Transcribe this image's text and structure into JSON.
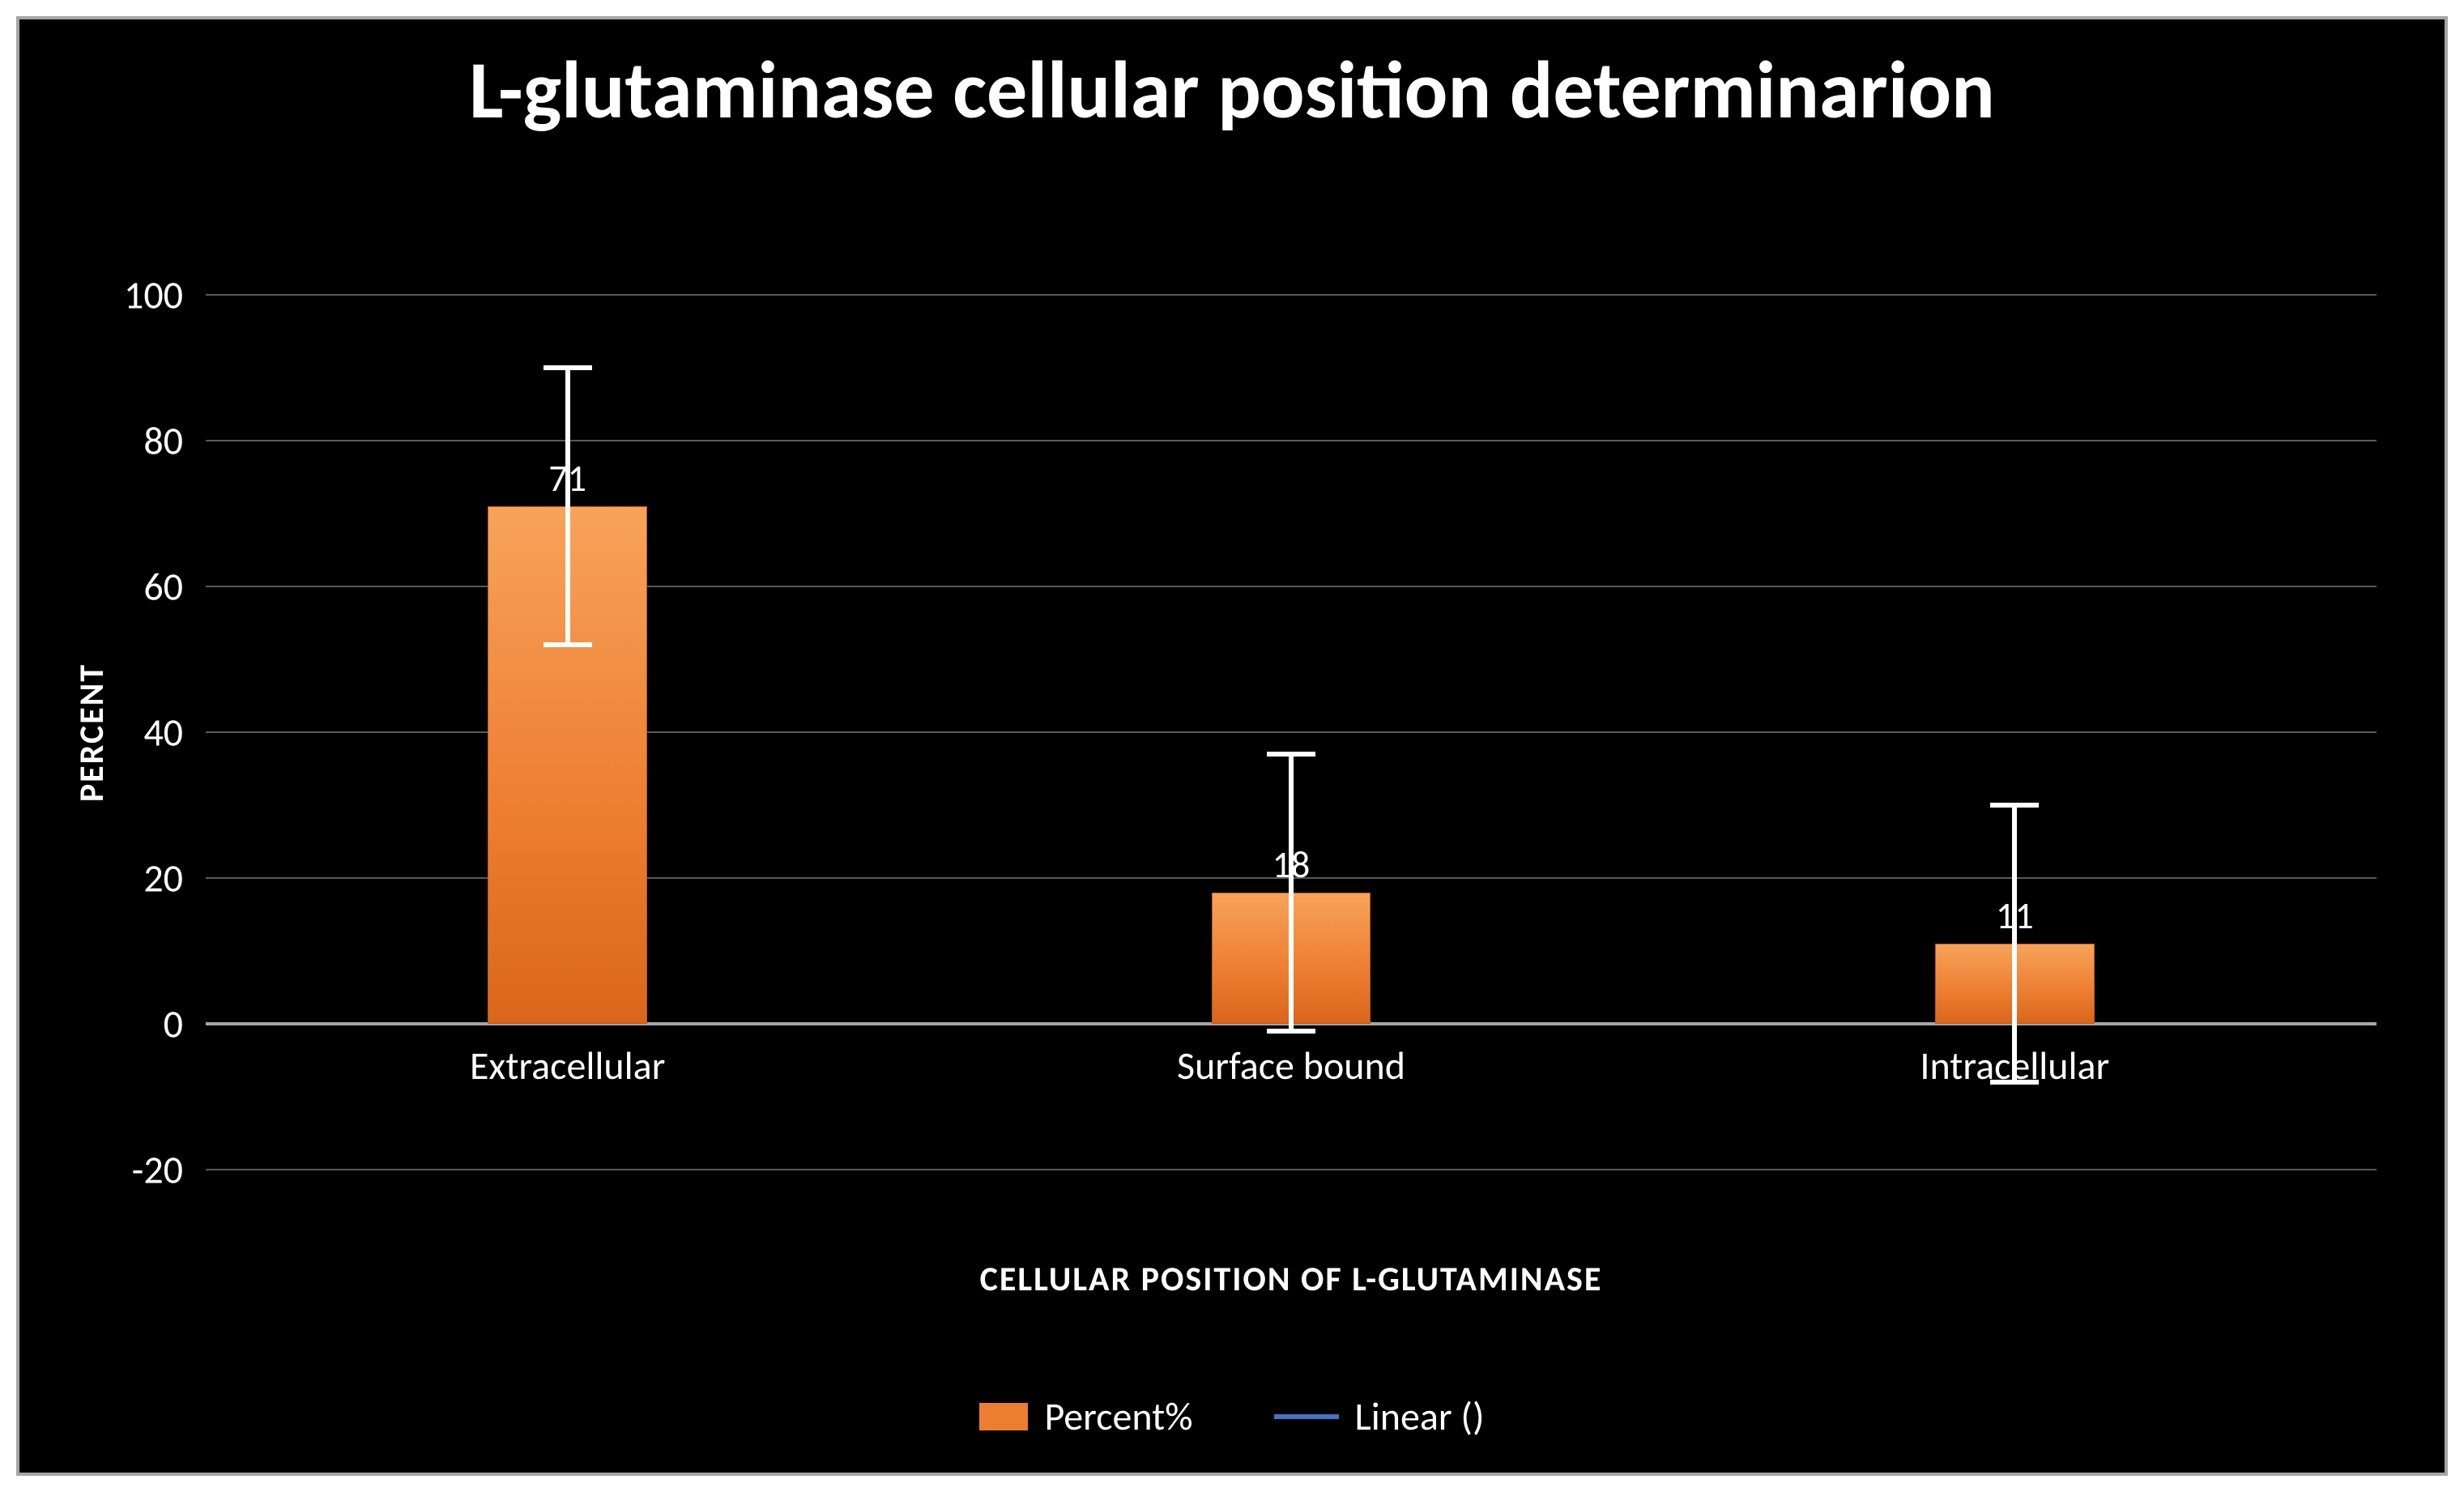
{
  "chart": {
    "type": "bar",
    "title": "L-glutaminase cellular position determinarion",
    "title_fontsize": 100,
    "title_color": "#ffffff",
    "background_color": "#000000",
    "frame_border_color": "#a6a6a6",
    "y_axis": {
      "title": "PERCENT",
      "min": -20,
      "max": 100,
      "tick_step": 20,
      "ticks": [
        -20,
        0,
        20,
        40,
        60,
        80,
        100
      ],
      "tick_fontsize": 48,
      "tick_color": "#ffffff",
      "grid_color": "#595959",
      "zero_line_color": "#a6a6a6"
    },
    "x_axis": {
      "title": "CELLULAR POSITION OF L-GLUTAMINASE",
      "title_fontsize": 42,
      "label_fontsize": 48,
      "label_color": "#ffffff"
    },
    "categories": [
      "Extracellular",
      "Surface bound",
      "Intracellular"
    ],
    "series": [
      {
        "name": "Percent%",
        "type": "bar",
        "color": "#ed7d31",
        "gradient_top": "#f7a35a",
        "gradient_bottom": "#d9661b",
        "bar_width_fraction": 0.11,
        "values": [
          71,
          18,
          11
        ],
        "data_labels": [
          "71",
          "18",
          "11"
        ],
        "error_bars": {
          "color": "#ffffff",
          "cap_width": 60,
          "stem_width": 6,
          "plus": [
            19,
            19,
            19
          ],
          "minus": [
            19,
            19,
            19
          ]
        }
      },
      {
        "name": "Linear ()",
        "type": "line",
        "color": "#4472c4",
        "values": []
      }
    ],
    "legend": {
      "position": "bottom",
      "fontsize": 48,
      "items": [
        {
          "label": "Percent%",
          "kind": "bar",
          "color": "#ed7d31"
        },
        {
          "label": "Linear ()",
          "kind": "line",
          "color": "#4472c4"
        }
      ]
    }
  }
}
